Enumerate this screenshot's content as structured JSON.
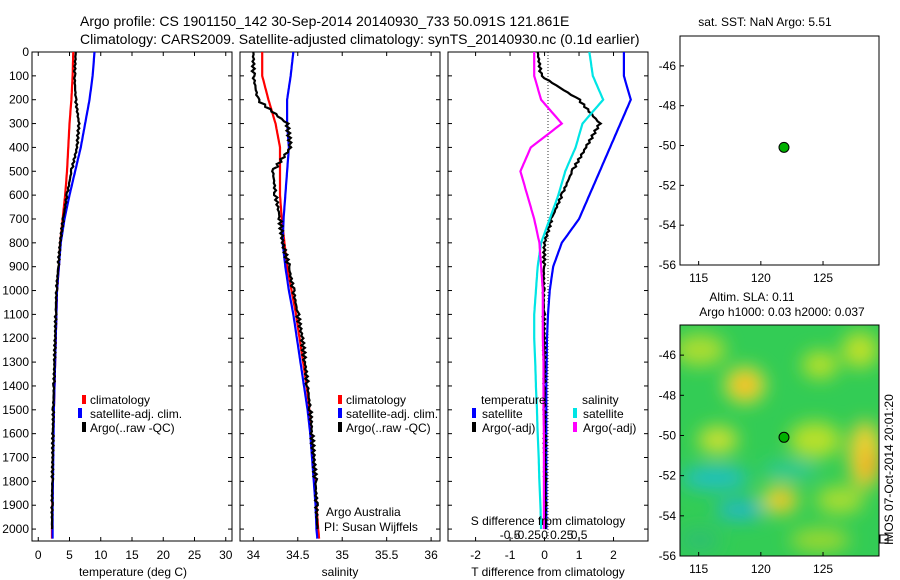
{
  "header": {
    "title_line1": "Argo profile: CS 1901150_142 30-Sep-2014 20140930_733 50.091S 121.861E",
    "title_line2": "Climatology: CARS2009. Satellite-adjusted climatology: synTS_20140930.nc (0.1d earlier)"
  },
  "colors": {
    "climatology": "#ff0000",
    "satellite": "#0000ff",
    "argo": "#000000",
    "cyan": "#00e5e5",
    "magenta": "#ff00ff",
    "float_marker": "#00b000"
  },
  "charts": {
    "temperature": {
      "xlabel": "temperature (deg C)",
      "xticks": [
        "0",
        "5",
        "10",
        "15",
        "20",
        "25",
        "30"
      ],
      "legend": [
        "climatology",
        "satellite-adj. clim.",
        "Argo(..raw -QC)"
      ]
    },
    "salinity": {
      "xlabel": "salinity",
      "xticks": [
        "34",
        "34.5",
        "35",
        "35.5",
        "36"
      ],
      "legend": [
        "climatology",
        "satellite-adj. clim.",
        "Argo(..raw -QC)"
      ],
      "note1": "Argo Australia",
      "note2": "PI: Susan Wijffels"
    },
    "difference": {
      "xlabel": "T difference from climatology",
      "xticks": [
        "-2",
        "-1",
        "0",
        "1",
        "2"
      ],
      "s_label": "S difference from climatology",
      "s_ticks": [
        "-0.5",
        "-0.25",
        "0",
        "0.25",
        "0.5"
      ],
      "legend_temp_title": "temperature",
      "legend_sal_title": "salinity",
      "legend_temp": [
        "satellite",
        "Argo(-adj)"
      ],
      "legend_sal": [
        "satellite",
        "Argo(-adj)"
      ]
    },
    "sst_map": {
      "title": "sat. SST: NaN Argo: 5.51",
      "xticks": [
        "115",
        "120",
        "125"
      ],
      "yticks": [
        "-46",
        "-48",
        "-50",
        "-52",
        "-54",
        "-56"
      ]
    },
    "sla_map": {
      "title1": "Altim. SLA: 0.11",
      "title2": "Argo h1000: 0.03 h2000: 0.037",
      "xticks": [
        "115",
        "120",
        "125"
      ],
      "yticks": [
        "-46",
        "-48",
        "-50",
        "-52",
        "-54",
        "-56"
      ],
      "side_label": "IMOS 07-Oct-2014 20:01:20"
    },
    "depth_ticks": [
      "0",
      "100",
      "200",
      "300",
      "400",
      "500",
      "600",
      "700",
      "800",
      "900",
      "1000",
      "1100",
      "1200",
      "1300",
      "1400",
      "1500",
      "1600",
      "1700",
      "1800",
      "1900",
      "2000"
    ]
  },
  "chart_data": [
    {
      "type": "line",
      "xlabel": "temperature (deg C)",
      "ylabel": "",
      "xlim": [
        -1,
        31
      ],
      "ylim": [
        2050,
        0
      ],
      "series": [
        {
          "name": "climatology",
          "color": "#ff0000",
          "x": [
            5.6,
            5.5,
            5.3,
            5.0,
            4.8,
            4.6,
            4.3,
            3.9,
            3.5,
            3.3,
            3.0,
            2.9,
            2.8,
            2.7,
            2.6,
            2.5,
            2.4,
            2.35,
            2.3,
            2.25,
            2.2,
            2.2
          ],
          "y": [
            0,
            100,
            200,
            300,
            400,
            500,
            600,
            700,
            800,
            900,
            1000,
            1100,
            1200,
            1300,
            1400,
            1500,
            1600,
            1700,
            1800,
            1900,
            2000,
            2040
          ]
        },
        {
          "name": "satellite-adj. clim.",
          "color": "#0000ff",
          "x": [
            9.0,
            8.7,
            8.2,
            7.5,
            6.8,
            5.9,
            5.0,
            4.2,
            3.6,
            3.3,
            3.0,
            2.9,
            2.8,
            2.7,
            2.6,
            2.5,
            2.45,
            2.4,
            2.35,
            2.3,
            2.3,
            2.3
          ],
          "y": [
            0,
            100,
            200,
            300,
            400,
            500,
            600,
            700,
            800,
            900,
            1000,
            1100,
            1200,
            1300,
            1400,
            1500,
            1600,
            1700,
            1800,
            1900,
            2000,
            2040
          ]
        },
        {
          "name": "Argo(..raw -QC)",
          "color": "#000000",
          "x": [
            6.0,
            5.8,
            6.0,
            6.5,
            6.2,
            5.3,
            4.6,
            4.0,
            3.5,
            3.2,
            2.9,
            2.8,
            2.7,
            2.6,
            2.5,
            2.4,
            2.35,
            2.3,
            2.25,
            2.2,
            2.2
          ],
          "y": [
            0,
            100,
            200,
            300,
            400,
            500,
            600,
            700,
            800,
            900,
            1000,
            1100,
            1200,
            1300,
            1400,
            1500,
            1600,
            1700,
            1800,
            1900,
            2000
          ]
        }
      ]
    },
    {
      "type": "line",
      "xlabel": "salinity",
      "ylabel": "",
      "xlim": [
        33.85,
        36.1
      ],
      "ylim": [
        2050,
        0
      ],
      "series": [
        {
          "name": "climatology",
          "color": "#ff0000",
          "x": [
            34.1,
            34.1,
            34.17,
            34.25,
            34.3,
            34.3,
            34.3,
            34.32,
            34.35,
            34.38,
            34.43,
            34.48,
            34.52,
            34.56,
            34.6,
            34.63,
            34.65,
            34.67,
            34.69,
            34.71,
            34.73,
            34.74
          ],
          "y": [
            0,
            100,
            200,
            300,
            400,
            500,
            600,
            700,
            800,
            900,
            1000,
            1100,
            1200,
            1300,
            1400,
            1500,
            1600,
            1700,
            1800,
            1900,
            2000,
            2040
          ]
        },
        {
          "name": "satellite-adj. clim.",
          "color": "#0000ff",
          "x": [
            34.45,
            34.42,
            34.38,
            34.38,
            34.4,
            34.38,
            34.36,
            34.34,
            34.33,
            34.36,
            34.4,
            34.45,
            34.49,
            34.53,
            34.57,
            34.61,
            34.64,
            34.66,
            34.68,
            34.7,
            34.71,
            34.72
          ],
          "y": [
            0,
            100,
            200,
            300,
            400,
            500,
            600,
            700,
            800,
            900,
            1000,
            1100,
            1200,
            1300,
            1400,
            1500,
            1600,
            1700,
            1800,
            1900,
            2000,
            2040
          ]
        },
        {
          "name": "Argo(..raw -QC)",
          "color": "#000000",
          "x": [
            34.0,
            34.0,
            34.05,
            34.38,
            34.42,
            34.22,
            34.25,
            34.3,
            34.33,
            34.4,
            34.45,
            34.5,
            34.55,
            34.58,
            34.61,
            34.64,
            34.66,
            34.68,
            34.7,
            34.71,
            34.72
          ],
          "y": [
            0,
            100,
            200,
            300,
            400,
            500,
            600,
            700,
            800,
            900,
            1000,
            1100,
            1200,
            1300,
            1400,
            1500,
            1600,
            1700,
            1800,
            1900,
            2000
          ]
        }
      ]
    },
    {
      "type": "line",
      "xlabel": "T difference from climatology",
      "ylabel": "",
      "xlim": [
        -2.8,
        3.0
      ],
      "ylim": [
        2050,
        0
      ],
      "series": [
        {
          "name": "satellite",
          "color": "#0000ff",
          "x": [
            2.3,
            2.3,
            2.5,
            2.2,
            1.9,
            1.6,
            1.3,
            1.0,
            0.5,
            0.25,
            0.15,
            0.1,
            0.07,
            0.06,
            0.05,
            0.05,
            0.05,
            0.05,
            0.05,
            0.05,
            0.05
          ],
          "y": [
            0,
            100,
            200,
            300,
            400,
            500,
            600,
            700,
            800,
            900,
            1000,
            1100,
            1200,
            1300,
            1400,
            1500,
            1600,
            1700,
            1800,
            1900,
            2000
          ]
        },
        {
          "name": "Argo(-adj)",
          "color": "#000000",
          "x": [
            -0.2,
            -0.1,
            1.0,
            1.6,
            1.2,
            0.8,
            0.5,
            0.2,
            0.0,
            -0.02,
            -0.03,
            -0.02,
            -0.01,
            0.0,
            0.0,
            0.0,
            0.01,
            0.01,
            0.02,
            0.02,
            0.02
          ],
          "y": [
            0,
            100,
            200,
            300,
            400,
            500,
            600,
            700,
            800,
            900,
            1000,
            1100,
            1200,
            1300,
            1400,
            1500,
            1600,
            1700,
            1800,
            1900,
            2000
          ]
        },
        {
          "name": "satellite",
          "color": "#00e5e5",
          "x": [
            1.3,
            1.4,
            1.7,
            1.1,
            0.9,
            0.6,
            0.4,
            0.15,
            -0.1,
            -0.2,
            -0.25,
            -0.3,
            -0.3,
            -0.27,
            -0.25,
            -0.22,
            -0.2,
            -0.17,
            -0.15,
            -0.12,
            -0.1
          ],
          "y": [
            0,
            100,
            200,
            300,
            400,
            500,
            600,
            700,
            800,
            900,
            1000,
            1100,
            1200,
            1300,
            1400,
            1500,
            1600,
            1700,
            1800,
            1900,
            2000
          ]
        },
        {
          "name": "Argo(-adj)",
          "color": "#ff00ff",
          "x": [
            -0.3,
            -0.3,
            -0.1,
            0.5,
            -0.4,
            -0.7,
            -0.5,
            -0.3,
            -0.15,
            -0.1,
            -0.05,
            -0.05,
            -0.05,
            -0.03,
            -0.03,
            -0.03,
            -0.02,
            -0.02,
            -0.02,
            -0.02,
            -0.02
          ],
          "y": [
            0,
            100,
            200,
            300,
            400,
            500,
            600,
            700,
            800,
            900,
            1000,
            1100,
            1200,
            1300,
            1400,
            1500,
            1600,
            1700,
            1800,
            1900,
            2000
          ]
        }
      ]
    },
    {
      "type": "scatter",
      "title": "sat. SST: NaN Argo: 5.51",
      "xlim": [
        113.5,
        129.5
      ],
      "ylim": [
        -56,
        -44.5
      ],
      "points": [
        {
          "x": 121.861,
          "y": -50.091
        }
      ]
    },
    {
      "type": "heatmap",
      "title": "Altim. SLA: 0.11",
      "xlim": [
        113.5,
        129.5
      ],
      "ylim": [
        -56,
        -44.5
      ],
      "points": [
        {
          "x": 121.861,
          "y": -50.091
        }
      ]
    }
  ]
}
